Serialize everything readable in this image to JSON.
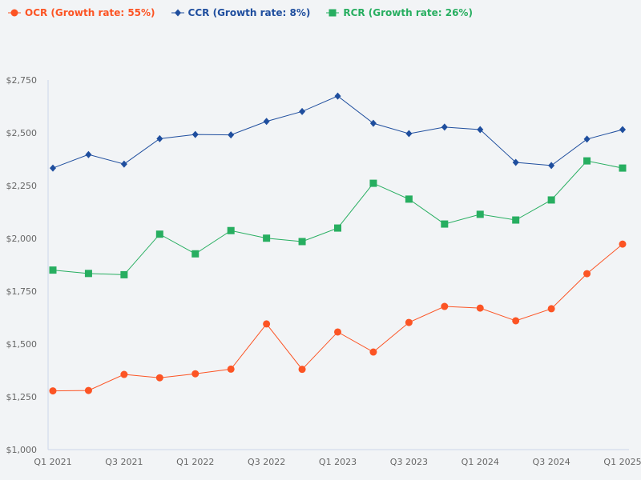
{
  "chart_data": {
    "type": "line",
    "title": "",
    "xlabel": "",
    "ylabel": "",
    "ylim": [
      1000,
      2750
    ],
    "yticks": [
      "$1,000",
      "$1,250",
      "$1,500",
      "$1,750",
      "$2,000",
      "$2,250",
      "$2,500",
      "$2,750"
    ],
    "ytick_values": [
      1000,
      1250,
      1500,
      1750,
      2000,
      2250,
      2500,
      2750
    ],
    "x": [
      "Q1 2021",
      "Q2 2021",
      "Q3 2021",
      "Q4 2021",
      "Q1 2022",
      "Q2 2022",
      "Q3 2022",
      "Q4 2022",
      "Q1 2023",
      "Q2 2023",
      "Q3 2023",
      "Q4 2023",
      "Q1 2024",
      "Q2 2024",
      "Q3 2024",
      "Q4 2024",
      "Q1 2025"
    ],
    "xtick_labels": [
      "Q1 2021",
      "",
      "Q3 2021",
      "",
      "Q1 2022",
      "",
      "Q3 2022",
      "",
      "Q1 2023",
      "",
      "Q3 2023",
      "",
      "Q1 2024",
      "",
      "Q3 2024",
      "",
      "Q1 2025"
    ],
    "grid": false,
    "legend_position": "top-left",
    "series": [
      {
        "name": "OCR (Growth rate: 55%)",
        "color": "#fc5424",
        "marker": "circle",
        "values": [
          1278,
          1280,
          1356,
          1340,
          1359,
          1381,
          1595,
          1380,
          1557,
          1462,
          1602,
          1678,
          1670,
          1610,
          1667,
          1833,
          1973
        ]
      },
      {
        "name": "CCR (Growth rate: 8%)",
        "color": "#1f4e9e",
        "marker": "diamond",
        "values": [
          2333,
          2397,
          2352,
          2472,
          2492,
          2490,
          2554,
          2601,
          2674,
          2545,
          2496,
          2527,
          2515,
          2360,
          2345,
          2470,
          2515
        ]
      },
      {
        "name": "RCR (Growth rate: 26%)",
        "color": "#27ae60",
        "marker": "square",
        "values": [
          1850,
          1834,
          1828,
          2020,
          1927,
          2037,
          2001,
          1985,
          2049,
          2261,
          2186,
          2068,
          2114,
          2087,
          2182,
          2367,
          2333
        ]
      }
    ]
  }
}
